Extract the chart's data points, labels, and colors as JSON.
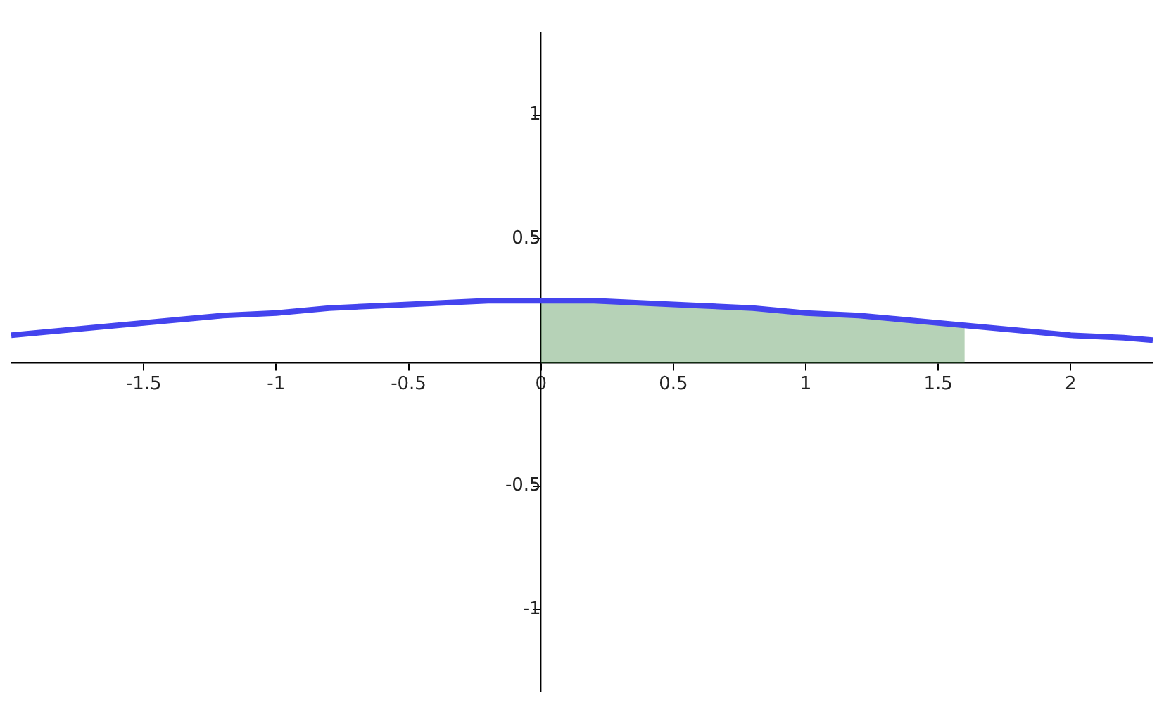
{
  "chart_data": {
    "type": "line",
    "xlim": [
      -2,
      2.31
    ],
    "ylim": [
      -1.33,
      1.33
    ],
    "xticks": [
      -1.5,
      -1,
      -0.5,
      0,
      0.5,
      1,
      1.5,
      2
    ],
    "yticks": [
      -1,
      -0.5,
      0.5,
      1
    ],
    "grid": false,
    "legend": false,
    "marker": "none",
    "line_style": "solid",
    "series": [
      {
        "type": "area",
        "color": "#2e7d32",
        "x": [
          0,
          0.2,
          0.4,
          0.6,
          0.8,
          1,
          1.2,
          1.4,
          1.6
        ],
        "values": [
          0.25,
          0.25,
          0.24,
          0.23,
          0.22,
          0.2,
          0.19,
          0.17,
          0.15
        ]
      },
      {
        "type": "line",
        "color": "#4444ee",
        "x": [
          -2,
          -1.8,
          -1.6,
          -1.4,
          -1.2,
          -1,
          -0.8,
          -0.6,
          -0.4,
          -0.2,
          0,
          0.2,
          0.4,
          0.6,
          0.8,
          1,
          1.2,
          1.4,
          1.6,
          1.8,
          2,
          2.2,
          2.31
        ],
        "values": [
          0.11,
          0.13,
          0.15,
          0.17,
          0.19,
          0.2,
          0.22,
          0.23,
          0.24,
          0.25,
          0.25,
          0.25,
          0.24,
          0.23,
          0.22,
          0.2,
          0.19,
          0.17,
          0.15,
          0.13,
          0.11,
          0.1,
          0.09
        ]
      }
    ]
  }
}
